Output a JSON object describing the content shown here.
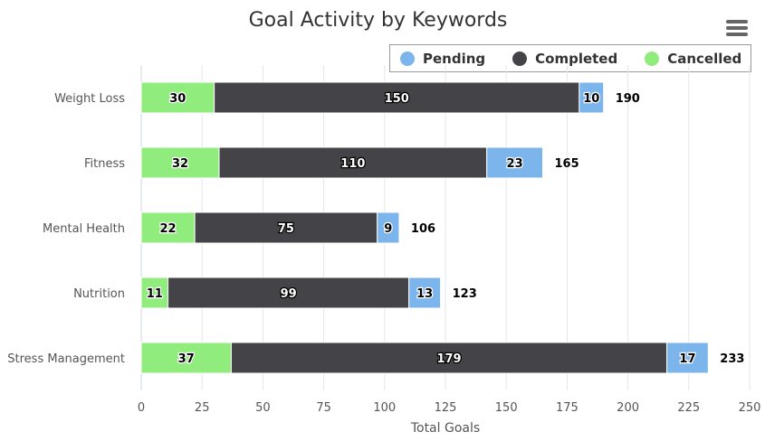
{
  "chart_data": {
    "type": "bar",
    "orientation": "horizontal",
    "stacked": true,
    "title": "Goal Activity by Keywords",
    "xlabel": "Total Goals",
    "ylabel": "",
    "xlim": [
      0,
      250
    ],
    "x_ticks": [
      0,
      25,
      50,
      75,
      100,
      125,
      150,
      175,
      200,
      225,
      250
    ],
    "grid": true,
    "legend_placement": "top-right",
    "categories": [
      "Weight Loss",
      "Fitness",
      "Mental Health",
      "Nutrition",
      "Stress Management"
    ],
    "series": [
      {
        "name": "Cancelled",
        "color": "#90ed7d",
        "values": [
          30,
          32,
          22,
          11,
          37
        ]
      },
      {
        "name": "Completed",
        "color": "#434348",
        "values": [
          150,
          110,
          75,
          99,
          179
        ]
      },
      {
        "name": "Pending",
        "color": "#7cb5ec",
        "values": [
          10,
          23,
          9,
          13,
          17
        ]
      }
    ],
    "totals": [
      190,
      165,
      106,
      123,
      233
    ],
    "legend": [
      {
        "name": "Pending",
        "color": "#7cb5ec"
      },
      {
        "name": "Completed",
        "color": "#434348"
      },
      {
        "name": "Cancelled",
        "color": "#90ed7d"
      }
    ]
  },
  "menu": {
    "icon": "hamburger-menu-icon"
  }
}
